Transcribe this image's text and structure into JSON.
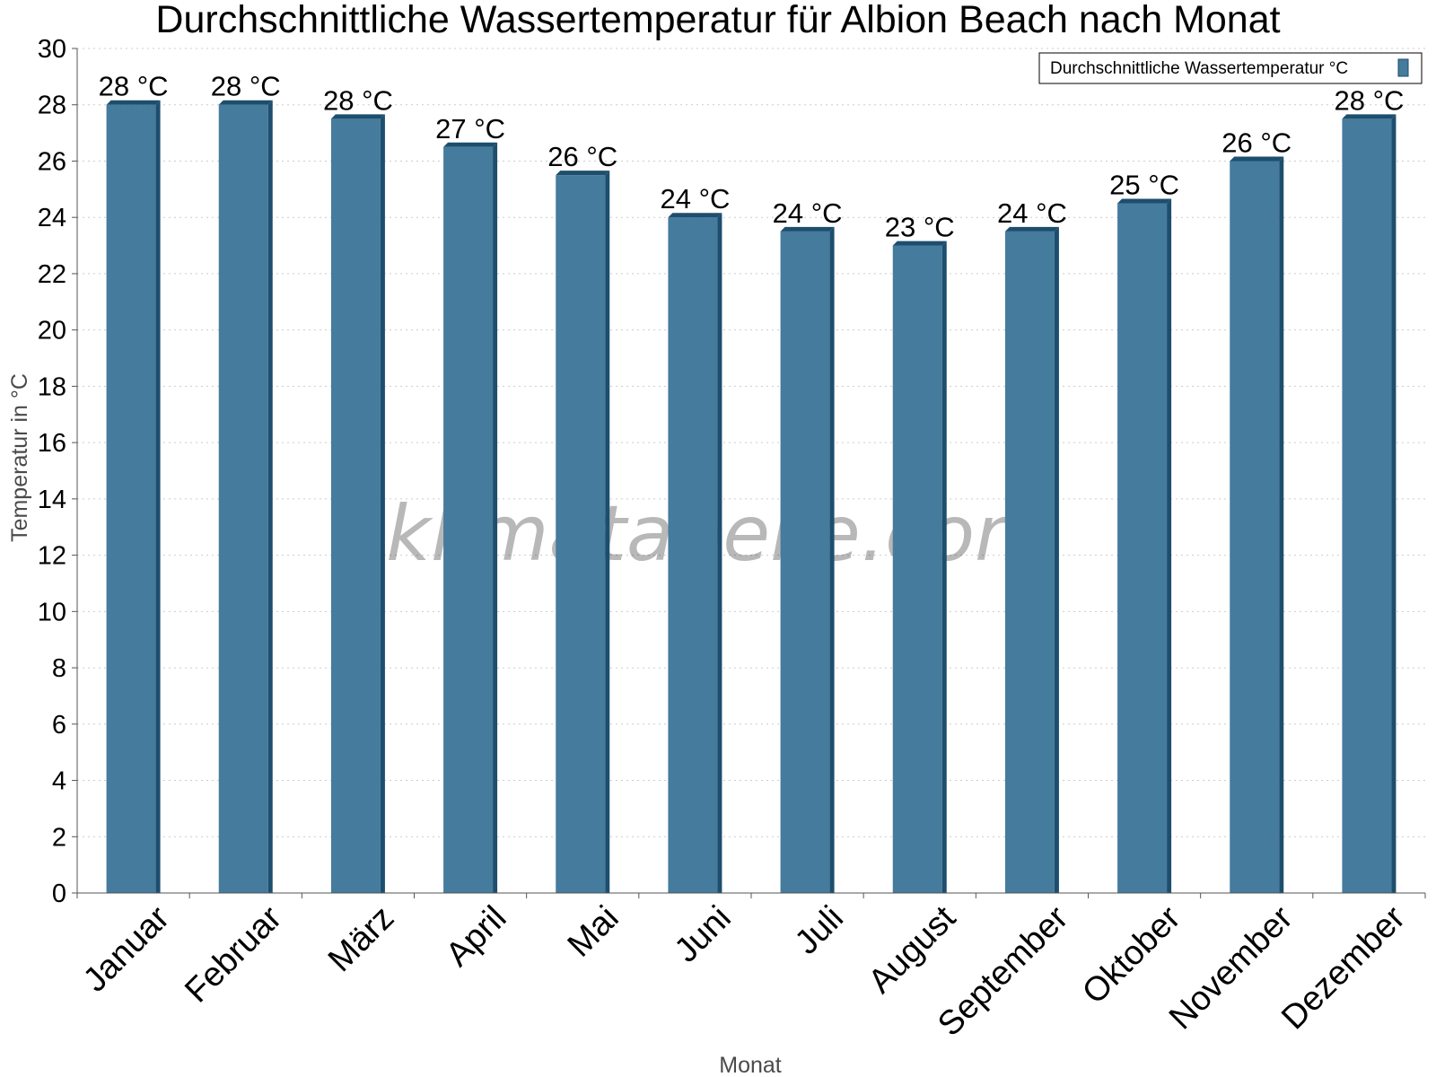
{
  "colors": {
    "bar_front": "#457b9d",
    "bar_side": "#1d4e6e",
    "bar_top": "#1d4e6e",
    "grid": "#cccccc",
    "axis": "#555555"
  },
  "watermark": "klimatabelle.com",
  "chart_data": {
    "type": "bar",
    "title": "Durchschnittliche Wassertemperatur für Albion Beach nach Monat",
    "xlabel": "Monat",
    "ylabel": "Temperatur in °C",
    "ylim": [
      0,
      30
    ],
    "yticks": [
      0,
      2,
      4,
      6,
      8,
      10,
      12,
      14,
      16,
      18,
      20,
      22,
      24,
      26,
      28,
      30
    ],
    "grid": true,
    "legend_position": "top-right",
    "categories": [
      "Januar",
      "Februar",
      "März",
      "April",
      "Mai",
      "Juni",
      "Juli",
      "August",
      "September",
      "Oktober",
      "November",
      "Dezember"
    ],
    "series": [
      {
        "name": "Durchschnittliche Wassertemperatur °C",
        "values": [
          28,
          28,
          27.5,
          26.5,
          25.5,
          24,
          23.5,
          23,
          23.5,
          24.5,
          26,
          27.5
        ],
        "labels": [
          "28 °C",
          "28 °C",
          "28 °C",
          "27 °C",
          "26 °C",
          "24 °C",
          "24 °C",
          "23 °C",
          "24 °C",
          "25 °C",
          "26 °C",
          "28 °C"
        ]
      }
    ]
  }
}
